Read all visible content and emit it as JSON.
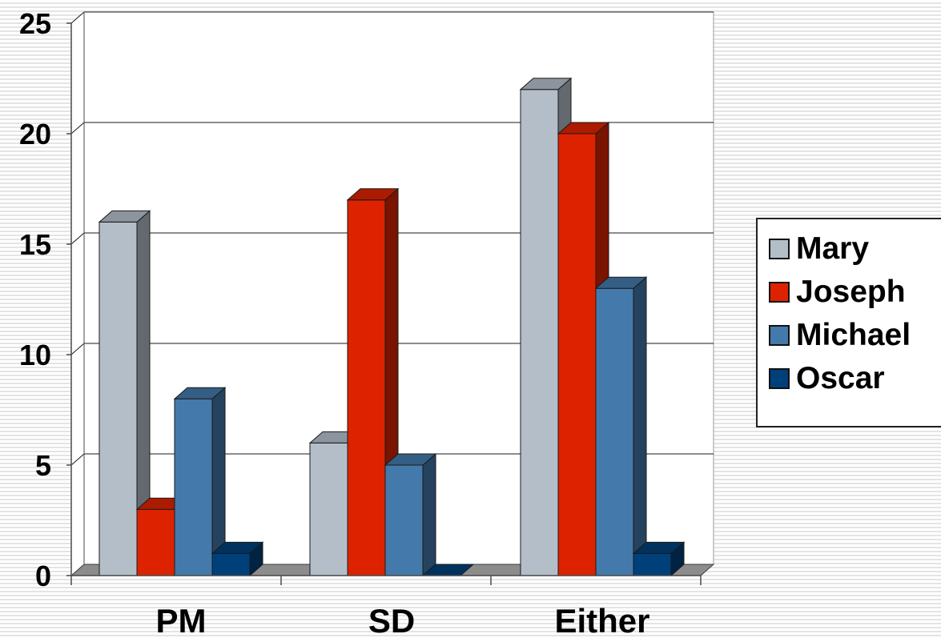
{
  "chart_data": {
    "type": "bar",
    "title": "",
    "xlabel": "",
    "ylabel": "",
    "categories": [
      "PM",
      "SD",
      "Either"
    ],
    "series": [
      {
        "name": "Mary",
        "color": "#b4bec9",
        "values": [
          16,
          6,
          22
        ]
      },
      {
        "name": "Joseph",
        "color": "#dd2200",
        "values": [
          3,
          17,
          20
        ]
      },
      {
        "name": "Michael",
        "color": "#4479ab",
        "values": [
          8,
          5,
          13
        ]
      },
      {
        "name": "Oscar",
        "color": "#00407a",
        "values": [
          1,
          0,
          1
        ]
      }
    ],
    "ylim": [
      0,
      25
    ],
    "yticks": [
      "0",
      "5",
      "10",
      "15",
      "20",
      "25"
    ],
    "grid": true,
    "legend_position": "right",
    "style": "3d-clustered"
  }
}
